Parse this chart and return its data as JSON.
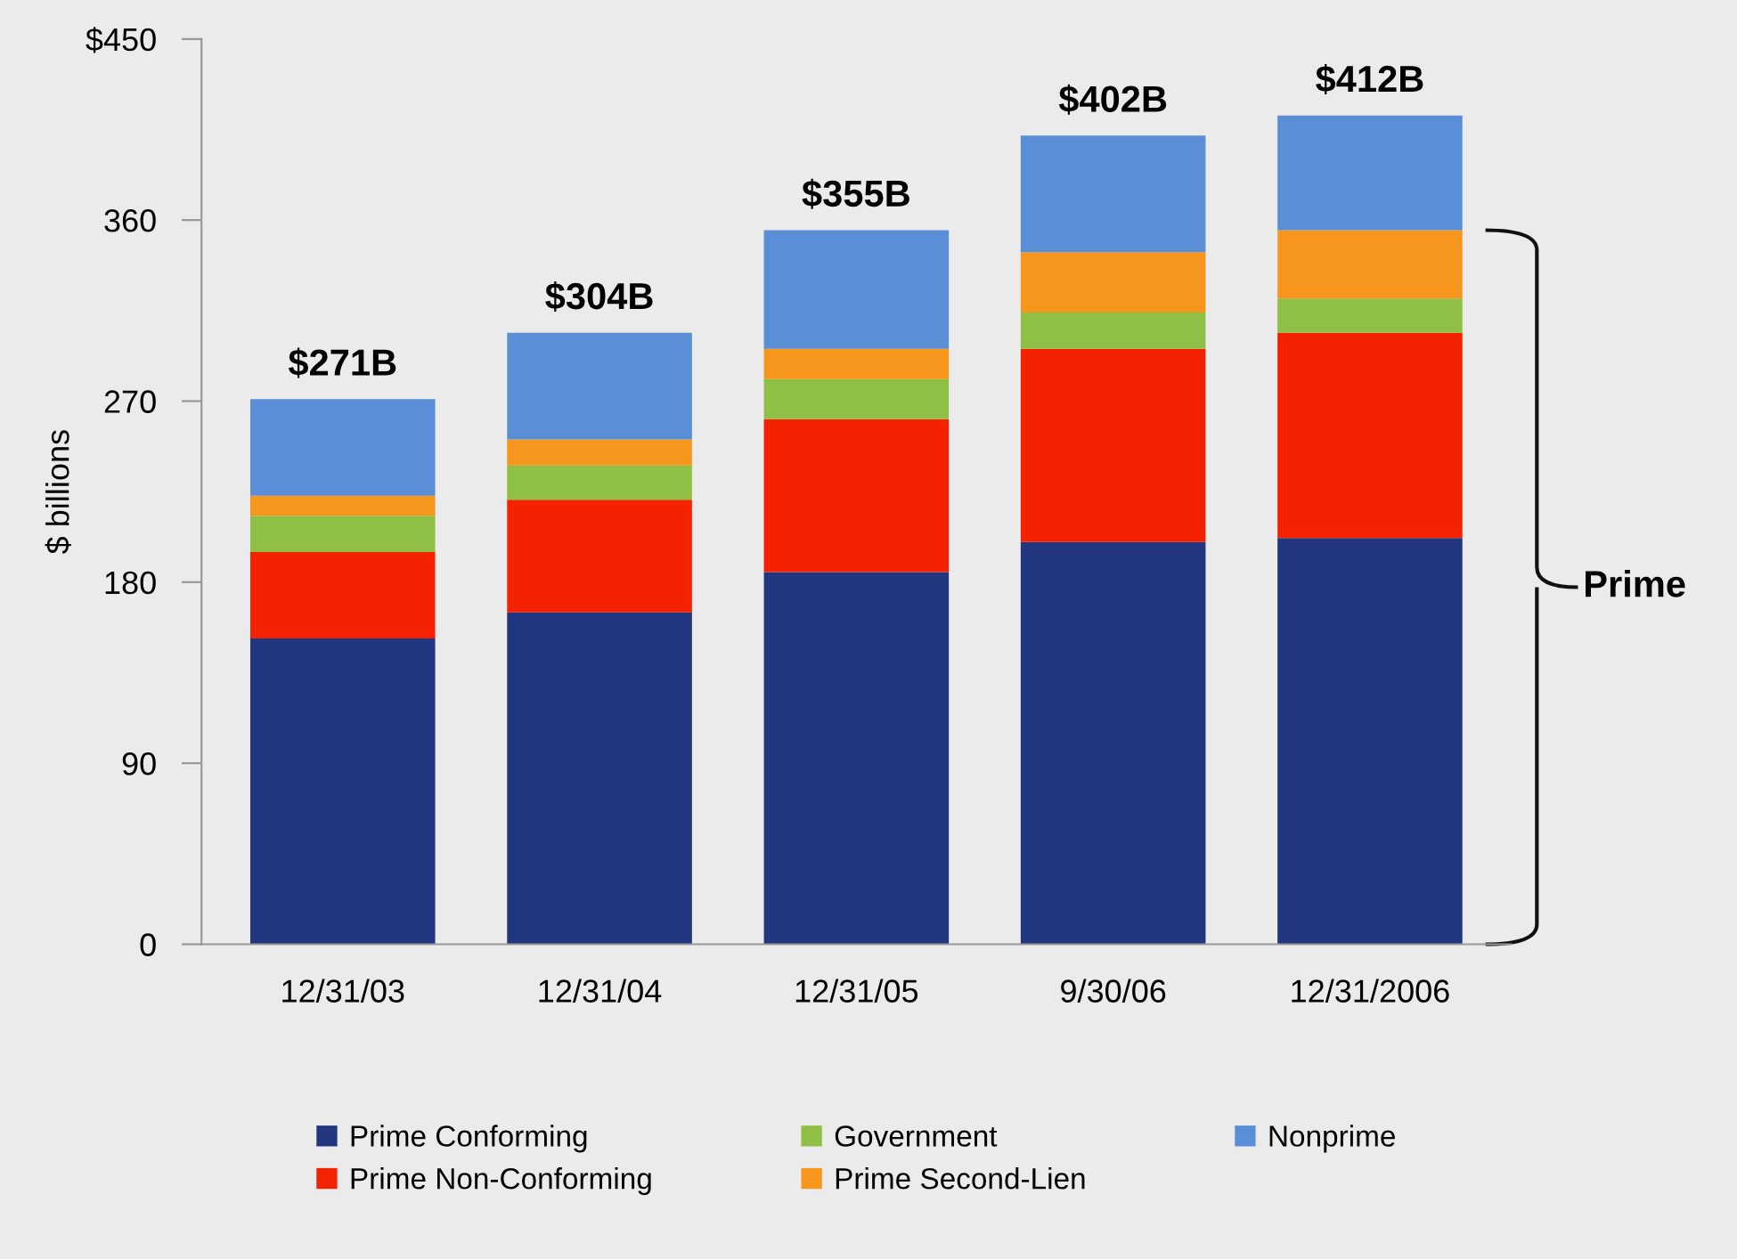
{
  "chart_data": {
    "type": "bar",
    "stacked": true,
    "ylabel": "$ billions",
    "categories": [
      "12/31/03",
      "12/31/04",
      "12/31/05",
      "9/30/06",
      "12/31/2006"
    ],
    "series": [
      {
        "name": "Prime Conforming",
        "color": "#22367f",
        "values": [
          152,
          165,
          185,
          200,
          202
        ]
      },
      {
        "name": "Prime Non-Conforming",
        "color": "#f52200",
        "values": [
          43,
          56,
          76,
          96,
          102
        ]
      },
      {
        "name": "Government",
        "color": "#8fbf45",
        "values": [
          18,
          17,
          20,
          18,
          17
        ]
      },
      {
        "name": "Prime Second-Lien",
        "color": "#f7961c",
        "values": [
          10,
          13,
          15,
          30,
          34
        ]
      },
      {
        "name": "Nonprime",
        "color": "#5a8fd8",
        "values": [
          48,
          53,
          59,
          58,
          57
        ]
      }
    ],
    "totals": [
      "$271B",
      "$304B",
      "$355B",
      "$402B",
      "$412B"
    ],
    "ylim": [
      0,
      450
    ],
    "yticks": [
      0,
      90,
      180,
      270,
      360,
      {
        "value": 450,
        "label": "$450"
      }
    ],
    "annotations": [
      "Prime"
    ],
    "grid": false,
    "legend": "bottom"
  }
}
